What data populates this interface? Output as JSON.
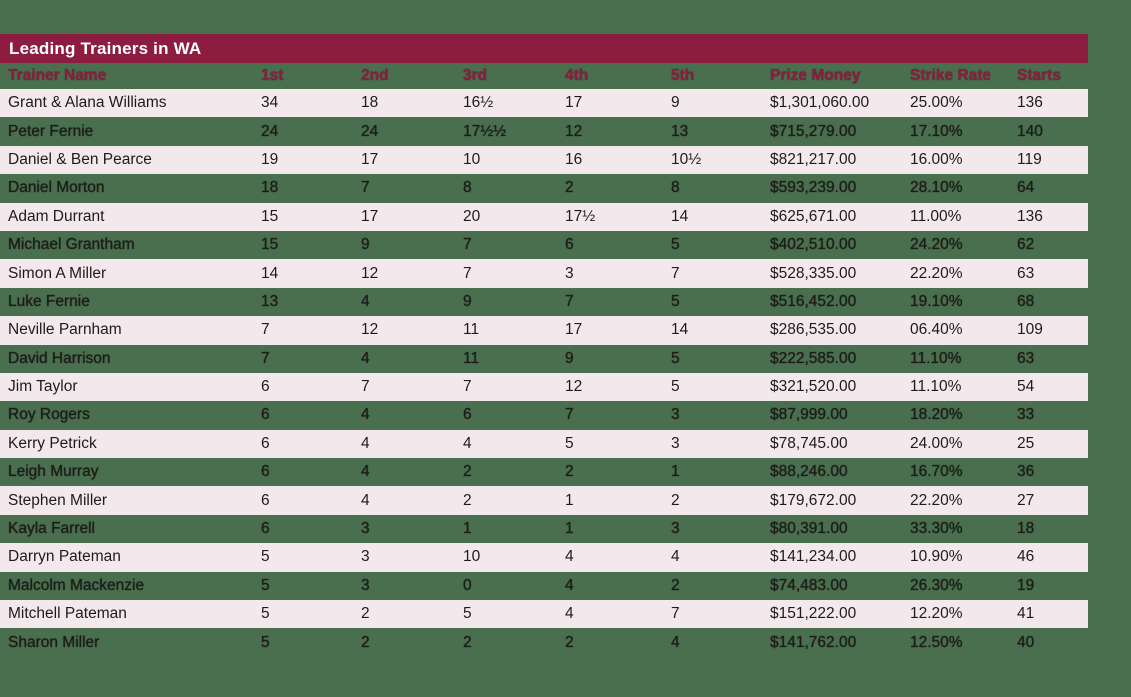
{
  "title": "Leading Trainers in WA",
  "colors": {
    "page_background": "#4a6f4e",
    "title_bar_background": "#8c1d40",
    "title_text": "#ffffff",
    "header_text": "#8c1d40",
    "row_stripe_pink": "#f3e9ec",
    "data_text": "#1d1c1a"
  },
  "chart_data": {
    "type": "table",
    "title": "Leading Trainers in WA",
    "columns": [
      "Trainer Name",
      "1st",
      "2nd",
      "3rd",
      "4th",
      "5th",
      "Prize Money",
      "Strike Rate",
      "Starts"
    ],
    "rows": [
      [
        "Grant & Alana Williams",
        "34",
        "18",
        "16½",
        "17",
        "9",
        "$1,301,060.00",
        "25.00%",
        "136"
      ],
      [
        "Peter Fernie",
        "24",
        "24",
        "17½½",
        "12",
        "13",
        "$715,279.00",
        "17.10%",
        "140"
      ],
      [
        "Daniel & Ben Pearce",
        "19",
        "17",
        "10",
        "16",
        "10½",
        "$821,217.00",
        "16.00%",
        "119"
      ],
      [
        "Daniel Morton",
        "18",
        "7",
        "8",
        "2",
        "8",
        "$593,239.00",
        "28.10%",
        "64"
      ],
      [
        "Adam Durrant",
        "15",
        "17",
        "20",
        "17½",
        "14",
        "$625,671.00",
        "11.00%",
        "136"
      ],
      [
        "Michael Grantham",
        "15",
        "9",
        "7",
        "6",
        "5",
        "$402,510.00",
        "24.20%",
        "62"
      ],
      [
        "Simon A Miller",
        "14",
        "12",
        "7",
        "3",
        "7",
        "$528,335.00",
        "22.20%",
        "63"
      ],
      [
        "Luke Fernie",
        "13",
        "4",
        "9",
        "7",
        "5",
        "$516,452.00",
        "19.10%",
        "68"
      ],
      [
        "Neville Parnham",
        "7",
        "12",
        "11",
        "17",
        "14",
        "$286,535.00",
        "06.40%",
        "109"
      ],
      [
        "David Harrison",
        "7",
        "4",
        "11",
        "9",
        "5",
        "$222,585.00",
        "11.10%",
        "63"
      ],
      [
        "Jim Taylor",
        "6",
        "7",
        "7",
        "12",
        "5",
        "$321,520.00",
        "11.10%",
        "54"
      ],
      [
        "Roy Rogers",
        "6",
        "4",
        "6",
        "7",
        "3",
        "$87,999.00",
        "18.20%",
        "33"
      ],
      [
        "Kerry Petrick",
        "6",
        "4",
        "4",
        "5",
        "3",
        "$78,745.00",
        "24.00%",
        "25"
      ],
      [
        "Leigh Murray",
        "6",
        "4",
        "2",
        "2",
        "1",
        "$88,246.00",
        "16.70%",
        "36"
      ],
      [
        "Stephen Miller",
        "6",
        "4",
        "2",
        "1",
        "2",
        "$179,672.00",
        "22.20%",
        "27"
      ],
      [
        "Kayla Farrell",
        "6",
        "3",
        "1",
        "1",
        "3",
        "$80,391.00",
        "33.30%",
        "18"
      ],
      [
        "Darryn Pateman",
        "5",
        "3",
        "10",
        "4",
        "4",
        "$141,234.00",
        "10.90%",
        "46"
      ],
      [
        "Malcolm Mackenzie",
        "5",
        "3",
        "0",
        "4",
        "2",
        "$74,483.00",
        "26.30%",
        "19"
      ],
      [
        "Mitchell Pateman",
        "5",
        "2",
        "5",
        "4",
        "7",
        "$151,222.00",
        "12.20%",
        "41"
      ],
      [
        "Sharon Miller",
        "5",
        "2",
        "2",
        "2",
        "4",
        "$141,762.00",
        "12.50%",
        "40"
      ]
    ],
    "layout": {
      "row_striping": [
        "pink",
        "transparent-green"
      ],
      "first_data_row_stripe": "pink",
      "grid": "off",
      "column_alignment": "left"
    }
  }
}
